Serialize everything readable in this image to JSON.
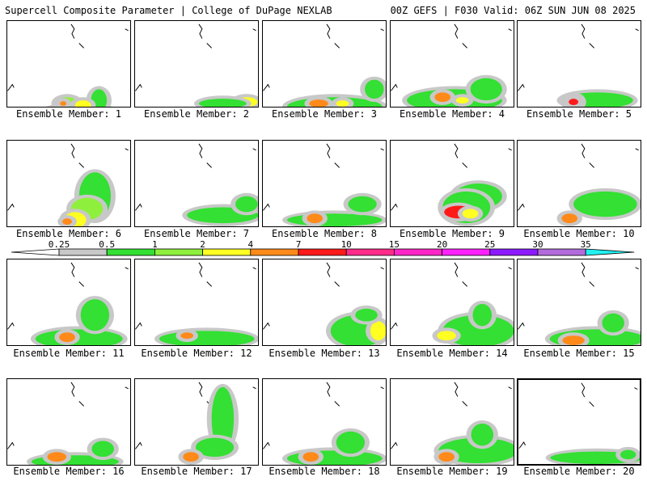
{
  "header": {
    "title_left": "Supercell Composite Parameter | College of DuPage NEXLAB",
    "title_right": "00Z GEFS | F030 Valid: 06Z SUN JUN 08 2025"
  },
  "colorbar": {
    "ticks": [
      "0.25",
      "0.5",
      "1",
      "2",
      "4",
      "7",
      "10",
      "15",
      "20",
      "25",
      "30",
      "35"
    ],
    "colors": [
      "#c8c8c8",
      "#33e033",
      "#8ef03c",
      "#ffff22",
      "#ff8a1a",
      "#ff1a1a",
      "#ff2a8a",
      "#ff26c8",
      "#ff22ff",
      "#8c1aff",
      "#b36bdc",
      "#22f0f0"
    ]
  },
  "panels": [
    {
      "label": "Ensemble Member: 1"
    },
    {
      "label": "Ensemble Member: 2"
    },
    {
      "label": "Ensemble Member: 3"
    },
    {
      "label": "Ensemble Member: 4"
    },
    {
      "label": "Ensemble Member: 5"
    },
    {
      "label": "Ensemble Member: 6"
    },
    {
      "label": "Ensemble Member: 7"
    },
    {
      "label": "Ensemble Member: 8"
    },
    {
      "label": "Ensemble Member: 9"
    },
    {
      "label": "Ensemble Member: 10"
    },
    {
      "label": "Ensemble Member: 11"
    },
    {
      "label": "Ensemble Member: 12"
    },
    {
      "label": "Ensemble Member: 13"
    },
    {
      "label": "Ensemble Member: 14"
    },
    {
      "label": "Ensemble Member: 15"
    },
    {
      "label": "Ensemble Member: 16"
    },
    {
      "label": "Ensemble Member: 17"
    },
    {
      "label": "Ensemble Member: 18"
    },
    {
      "label": "Ensemble Member: 19"
    },
    {
      "label": "Ensemble Member: 20"
    }
  ]
}
